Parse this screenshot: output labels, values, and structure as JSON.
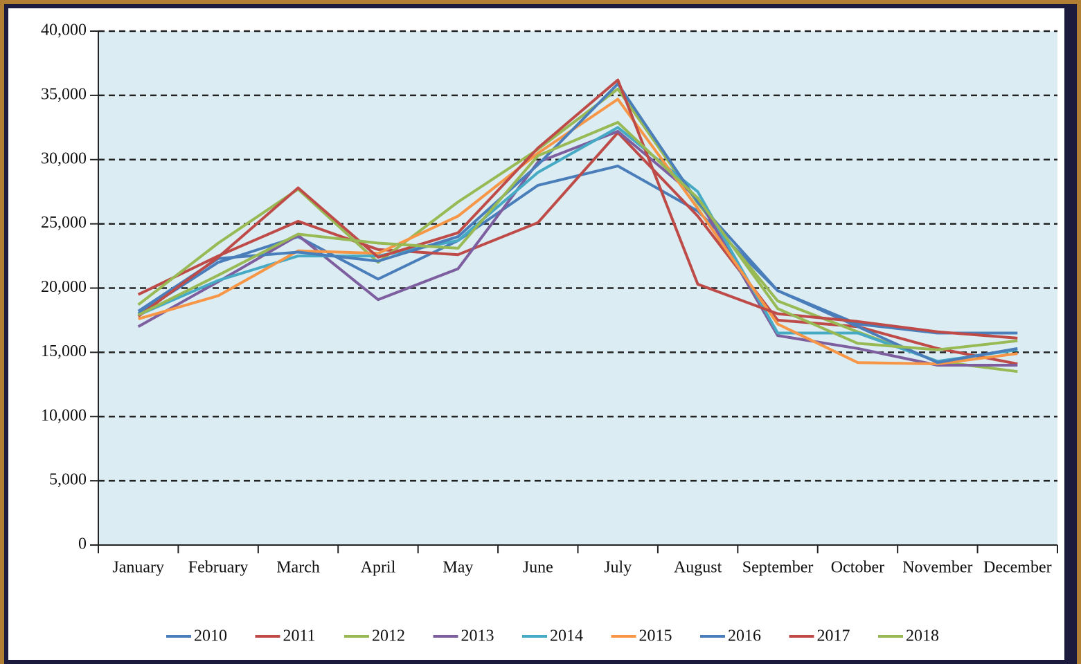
{
  "chart_data": {
    "type": "line",
    "categories": [
      "January",
      "February",
      "March",
      "April",
      "May",
      "June",
      "July",
      "August",
      "September",
      "October",
      "November",
      "December"
    ],
    "series": [
      {
        "name": "2010",
        "color": "#4a7ebb",
        "values": [
          18000,
          22000,
          24000,
          20700,
          23700,
          28000,
          29500,
          26000,
          19800,
          17200,
          16500,
          16500
        ]
      },
      {
        "name": "2011",
        "color": "#be4b48",
        "values": [
          19500,
          22500,
          25200,
          23000,
          22600,
          25100,
          32100,
          25600,
          17500,
          17000,
          15300,
          14100
        ]
      },
      {
        "name": "2012",
        "color": "#98b954",
        "values": [
          18700,
          23500,
          27700,
          22000,
          26700,
          30800,
          35500,
          26600,
          19000,
          16600,
          14300,
          13500
        ]
      },
      {
        "name": "2013",
        "color": "#7d5fa0",
        "values": [
          17000,
          20500,
          24100,
          19100,
          21500,
          29800,
          32200,
          27000,
          16300,
          15300,
          14000,
          14000
        ]
      },
      {
        "name": "2014",
        "color": "#46aac5",
        "values": [
          17900,
          20600,
          22500,
          22500,
          23700,
          29000,
          32500,
          27500,
          16500,
          16500,
          14300,
          15200
        ]
      },
      {
        "name": "2015",
        "color": "#f79646",
        "values": [
          17600,
          19400,
          22900,
          22700,
          25600,
          30500,
          34700,
          26200,
          17200,
          14200,
          14100,
          14900
        ]
      },
      {
        "name": "2016",
        "color": "#4a7ebb",
        "values": [
          18200,
          22300,
          22800,
          22100,
          24000,
          29600,
          35900,
          26700,
          19800,
          17000,
          14200,
          15300
        ]
      },
      {
        "name": "2017",
        "color": "#be4b48",
        "values": [
          17800,
          22400,
          27800,
          22400,
          24300,
          30900,
          36200,
          20300,
          18000,
          17400,
          16600,
          16100
        ]
      },
      {
        "name": "2018",
        "color": "#98b954",
        "values": [
          17900,
          21000,
          24200,
          23500,
          23100,
          30300,
          32900,
          27000,
          18400,
          15700,
          15200,
          15900
        ]
      }
    ],
    "ylim": [
      0,
      40000
    ],
    "yticks": [
      0,
      {
        "value": 5000,
        "label": "5,000"
      },
      {
        "value": 10000,
        "label": "10,000"
      },
      {
        "value": 15000,
        "label": "15,000"
      },
      {
        "value": 20000,
        "label": "20,000"
      },
      {
        "value": 25000,
        "label": "25,000"
      },
      {
        "value": 30000,
        "label": "30,000"
      },
      {
        "value": 35000,
        "label": "35,000"
      },
      {
        "value": 40000,
        "label": "40,000"
      }
    ],
    "grid": true
  }
}
